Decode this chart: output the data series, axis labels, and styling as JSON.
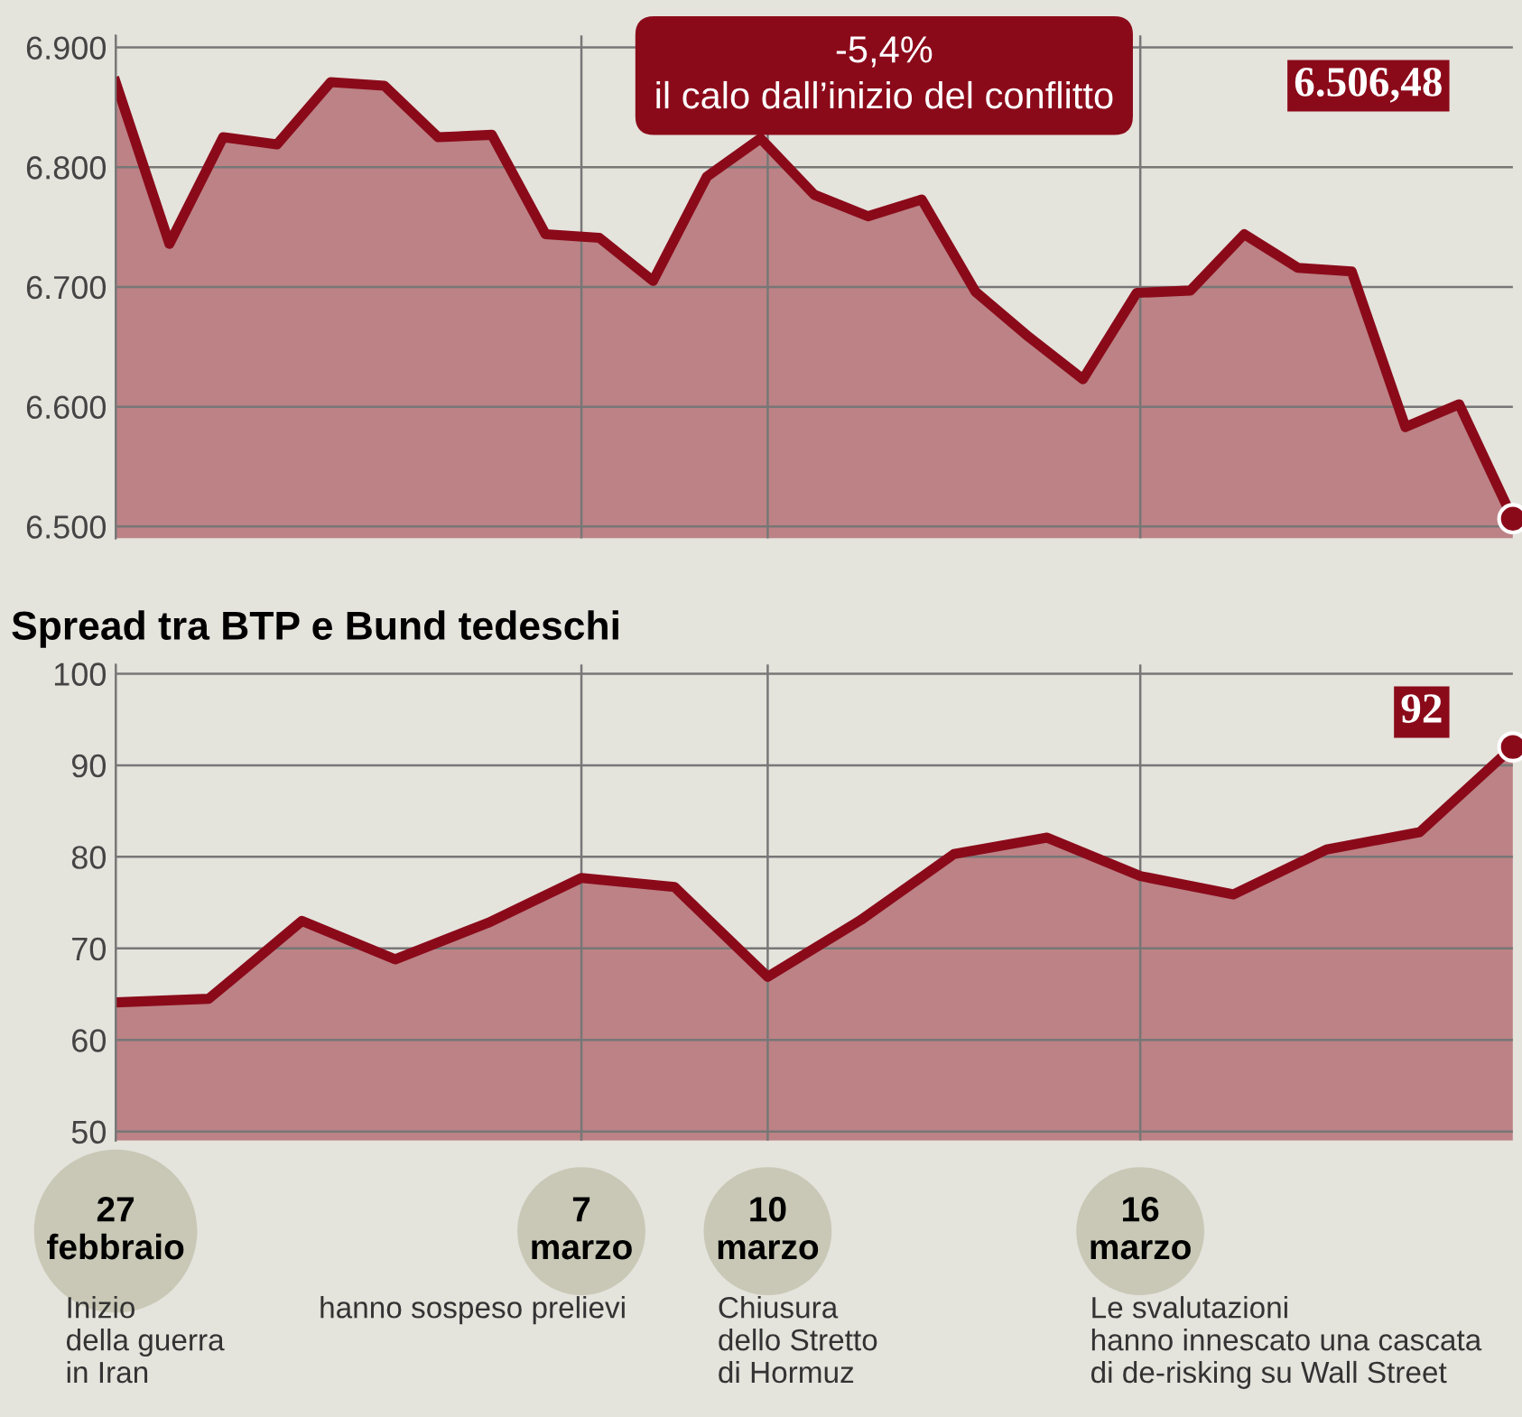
{
  "chart_data": [
    {
      "type": "area",
      "categories": [
        null,
        null,
        null,
        null,
        null,
        null,
        null,
        null,
        null,
        null,
        null,
        null,
        null,
        null,
        null,
        null,
        null,
        null,
        null,
        null,
        null,
        null,
        null,
        null,
        null,
        null,
        null
      ],
      "series": [
        {
          "color": "#8b0a1a",
          "values": [
            6871,
            6736,
            6825,
            6819,
            6871,
            6868,
            6825,
            6827,
            6744,
            6741,
            6705,
            6792,
            6824,
            6777,
            6759,
            6773,
            6696,
            6658,
            6623,
            6695,
            6697,
            6744,
            6716,
            6713,
            6583,
            6602,
            6506.48
          ]
        }
      ],
      "ylim": [
        6490,
        6910
      ],
      "yticks": [
        {
          "value": 6500,
          "label": "6.500"
        },
        {
          "value": 6600,
          "label": "6.600"
        },
        {
          "value": 6700,
          "label": "6.700"
        },
        {
          "value": 6800,
          "label": "6.800"
        },
        {
          "value": 6900,
          "label": "6.900"
        }
      ],
      "grid": true,
      "annotations": [
        "-5,4%\nil calo dall’inizio del conflitto",
        "6.506,48"
      ]
    },
    {
      "type": "area",
      "title": "Spread tra BTP e Bund tedeschi",
      "categories": [
        "27\nfebbraio",
        null,
        null,
        null,
        null,
        "7\nmarzo",
        null,
        "10\nmarzo",
        null,
        null,
        null,
        "16\nmarzo",
        null,
        null,
        null,
        null
      ],
      "series": [
        {
          "color": "#8b0a1a",
          "values": [
            64.1,
            64.5,
            73.0,
            68.8,
            72.8,
            77.7,
            76.7,
            66.9,
            73.1,
            80.3,
            82.1,
            77.9,
            75.9,
            80.8,
            82.7,
            92
          ]
        }
      ],
      "ylim": [
        49,
        101
      ],
      "yticks": [
        50,
        60,
        70,
        80,
        90,
        100
      ],
      "grid": true,
      "annotations": [
        "92",
        "Inizio\ndella guerra\nin Iran",
        "hanno sospeso prelievi",
        "Chiusura\ndello Stretto\ndi Hormuz",
        "Le svalutazioni\nhanno innescato una cascata\ndi de-risking su Wall Street"
      ]
    }
  ]
}
